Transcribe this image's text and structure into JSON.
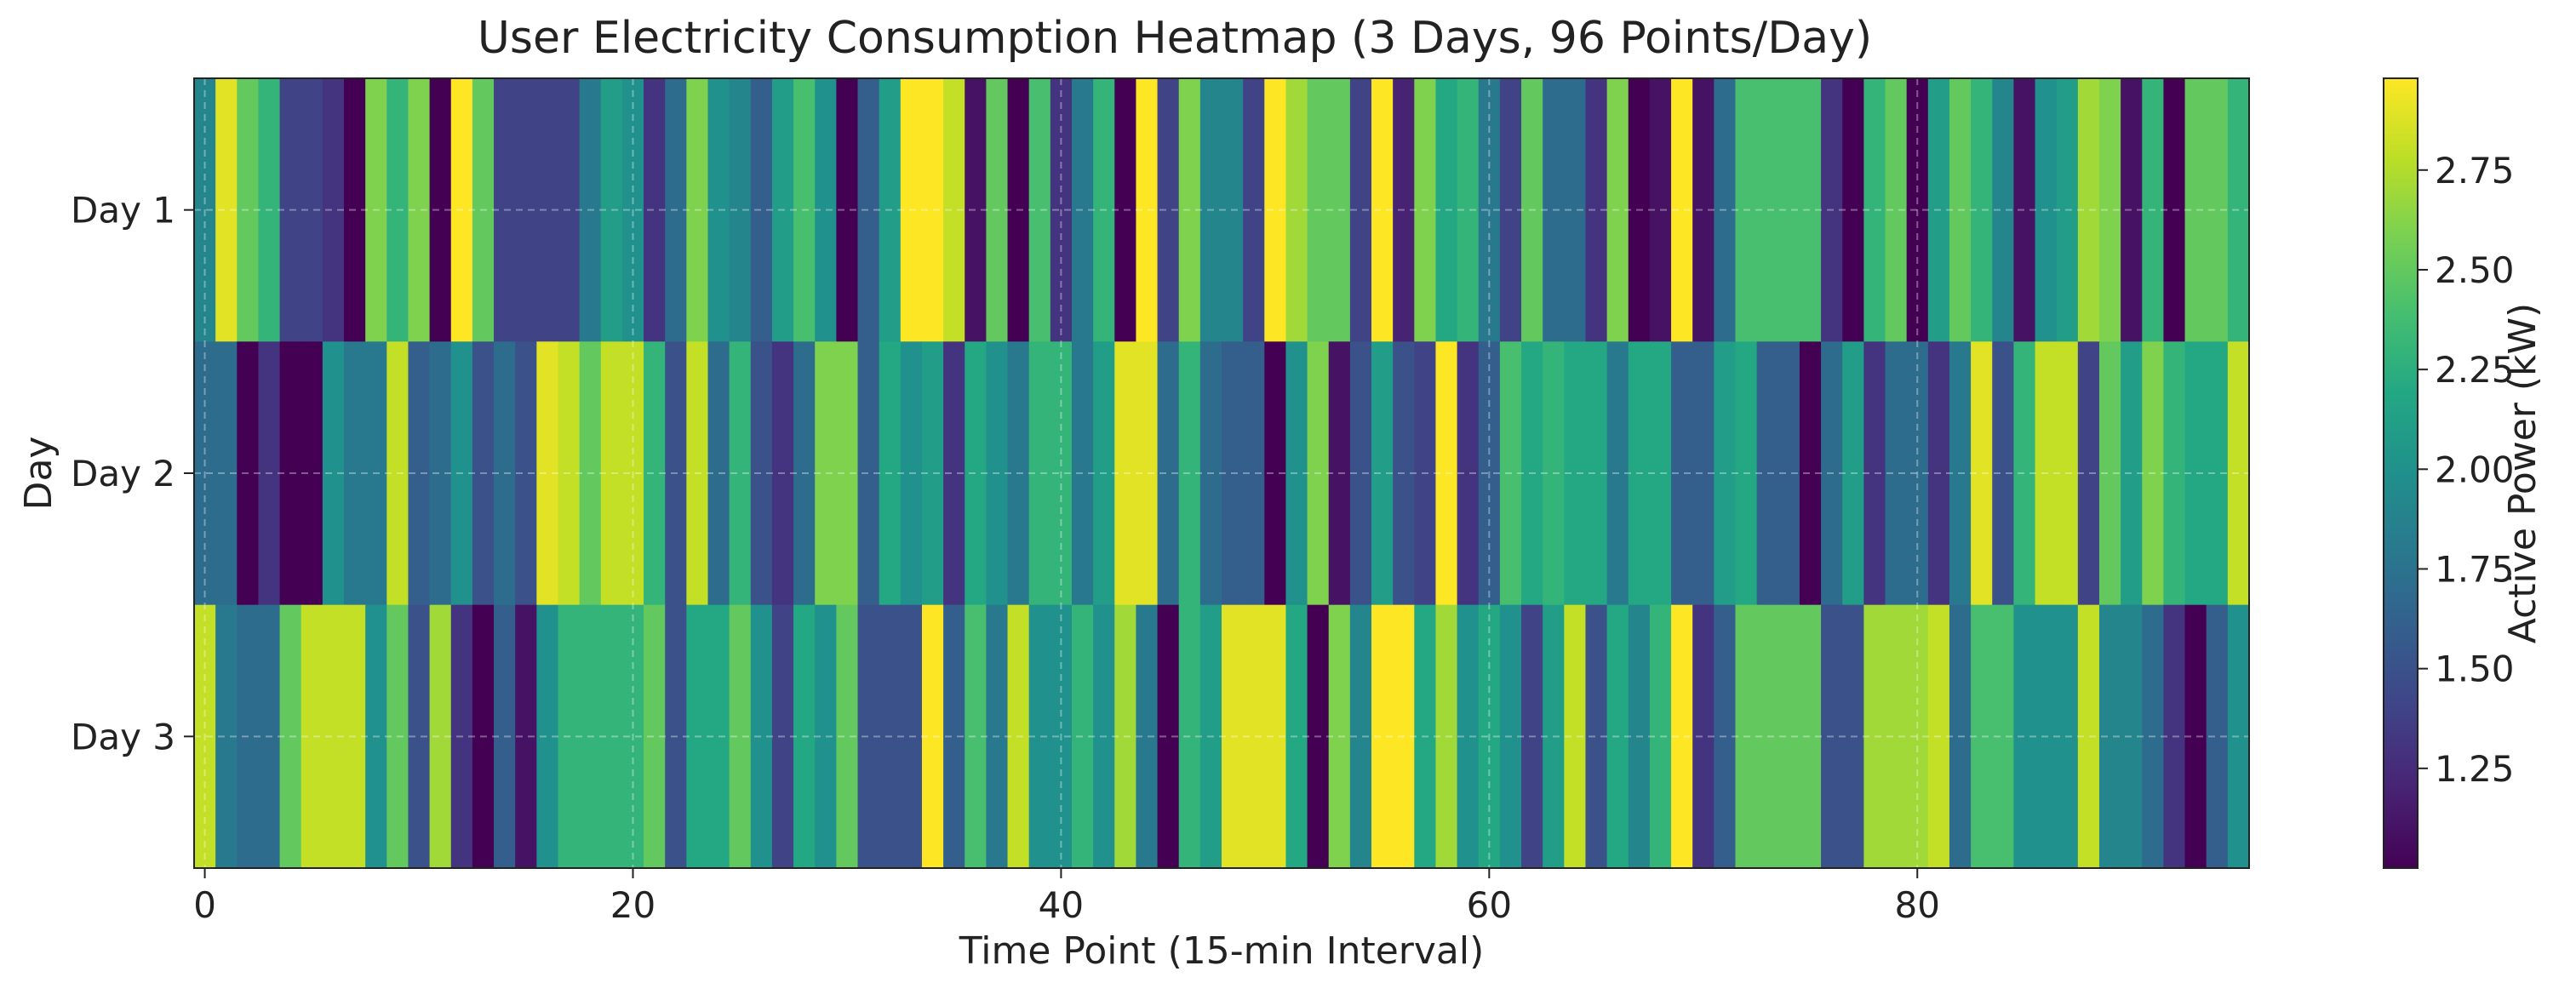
{
  "chart_data": {
    "type": "heatmap",
    "title": "User Electricity Consumption Heatmap (3 Days, 96 Points/Day)",
    "xlabel": "Time Point (15-min Interval)",
    "ylabel": "Day",
    "rows": [
      "Day 1",
      "Day 2",
      "Day 3"
    ],
    "x_ticks": [
      0,
      20,
      40,
      60,
      80
    ],
    "xlim": [
      -0.5,
      95.5
    ],
    "grid": true,
    "colormap": "viridis",
    "colorbar": {
      "label": "Active Power (kW)",
      "ticks": [
        "1.25",
        "1.50",
        "1.75",
        "2.00",
        "2.25",
        "2.50",
        "2.75"
      ],
      "range": [
        1.0,
        2.98
      ]
    },
    "values": [
      [
        1.9,
        2.9,
        2.5,
        2.3,
        1.4,
        1.4,
        1.3,
        1.0,
        2.6,
        2.3,
        2.6,
        1.0,
        2.98,
        2.5,
        1.4,
        1.4,
        1.4,
        1.4,
        1.8,
        2.1,
        2.0,
        1.3,
        1.7,
        2.6,
        2.0,
        1.9,
        1.6,
        2.1,
        2.4,
        2.0,
        1.0,
        1.6,
        2.1,
        2.98,
        2.98,
        2.8,
        1.1,
        2.5,
        1.0,
        2.4,
        1.3,
        1.8,
        2.3,
        1.0,
        2.98,
        1.4,
        2.6,
        1.9,
        1.9,
        1.4,
        2.98,
        2.7,
        2.5,
        2.5,
        1.4,
        2.98,
        1.2,
        2.6,
        2.2,
        2.3,
        1.8,
        1.4,
        2.5,
        1.7,
        1.7,
        1.3,
        2.6,
        1.0,
        1.1,
        2.98,
        1.1,
        1.7,
        2.4,
        2.4,
        2.4,
        2.4,
        1.3,
        1.0,
        2.3,
        2.5,
        1.0,
        2.1,
        2.5,
        2.3,
        1.9,
        1.1,
        2.0,
        2.1,
        2.7,
        2.6,
        1.1,
        2.3,
        1.0,
        2.5,
        2.5,
        2.3
      ],
      [
        1.7,
        1.7,
        1.0,
        1.3,
        1.0,
        1.0,
        2.0,
        1.8,
        1.8,
        2.8,
        1.6,
        1.7,
        2.0,
        1.5,
        1.7,
        1.5,
        2.9,
        2.8,
        2.5,
        2.8,
        2.8,
        2.3,
        1.5,
        2.8,
        1.7,
        2.3,
        1.5,
        1.3,
        1.7,
        2.6,
        2.6,
        1.6,
        2.2,
        2.0,
        2.1,
        1.3,
        2.2,
        2.0,
        1.8,
        2.3,
        2.3,
        1.8,
        2.1,
        2.9,
        2.9,
        1.7,
        2.3,
        1.7,
        1.6,
        1.6,
        1.0,
        2.0,
        2.6,
        1.1,
        1.5,
        2.1,
        1.5,
        1.4,
        2.98,
        1.3,
        1.6,
        2.4,
        2.2,
        2.3,
        2.2,
        2.2,
        1.8,
        2.2,
        2.2,
        1.6,
        1.6,
        2.1,
        2.2,
        1.6,
        1.6,
        1.0,
        1.7,
        2.1,
        1.3,
        1.7,
        1.7,
        1.3,
        1.8,
        2.9,
        1.5,
        2.3,
        2.8,
        2.8,
        1.4,
        2.5,
        2.1,
        2.6,
        2.3,
        2.2,
        2.2,
        2.8
      ],
      [
        2.8,
        1.8,
        1.7,
        1.7,
        2.5,
        2.8,
        2.8,
        2.8,
        2.0,
        2.5,
        1.5,
        2.7,
        1.3,
        1.0,
        1.6,
        1.1,
        2.0,
        2.3,
        2.3,
        2.3,
        2.3,
        2.5,
        1.5,
        2.2,
        2.2,
        2.5,
        2.0,
        1.4,
        2.2,
        2.0,
        2.5,
        1.5,
        1.5,
        1.5,
        2.98,
        1.6,
        2.4,
        1.8,
        2.8,
        2.0,
        2.0,
        2.3,
        2.0,
        2.7,
        1.8,
        1.0,
        2.3,
        2.1,
        2.9,
        2.9,
        2.9,
        2.2,
        1.0,
        2.6,
        1.9,
        2.98,
        2.98,
        2.2,
        2.7,
        2.0,
        2.2,
        2.0,
        1.4,
        2.1,
        2.8,
        1.5,
        2.2,
        1.9,
        2.3,
        2.98,
        1.3,
        1.6,
        2.5,
        2.5,
        2.5,
        2.5,
        1.5,
        1.5,
        2.7,
        2.7,
        2.7,
        2.8,
        1.7,
        2.4,
        2.4,
        2.0,
        2.0,
        2.0,
        2.8,
        1.9,
        1.9,
        1.7,
        1.3,
        1.0,
        1.6,
        2.0
      ]
    ]
  }
}
